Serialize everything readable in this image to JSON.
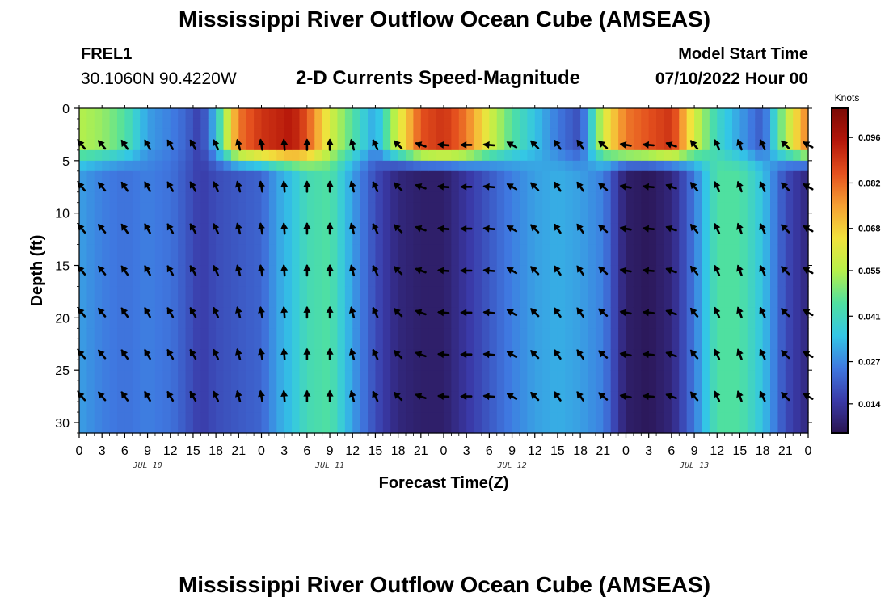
{
  "header": {
    "title": "Mississippi River Outflow Ocean Cube (AMSEAS)",
    "station_id": "FREL1",
    "station_coords": "30.1060N  90.4220W",
    "product": "2-D Currents Speed-Magnitude",
    "model_start_label": "Model Start Time",
    "model_start_value": "07/10/2022 Hour 00"
  },
  "footer": {
    "title": "Mississippi River Outflow Ocean Cube (AMSEAS)"
  },
  "colors": {
    "colormap": [
      "#2a1450",
      "#3a3aa8",
      "#3f78e0",
      "#33c6e6",
      "#4fe0a0",
      "#b6f04a",
      "#f2e23c",
      "#f6a033",
      "#e4501e",
      "#b4160a",
      "#7a0a05"
    ],
    "arrow": "#000000"
  },
  "chart_data": {
    "type": "heatmap",
    "title": "2-D Currents Speed-Magnitude",
    "xlabel": "Forecast Time(Z)",
    "ylabel": "Depth (ft)",
    "x_tick_labels": [
      "0",
      "3",
      "6",
      "9",
      "12",
      "15",
      "18",
      "21",
      "0",
      "3",
      "6",
      "9",
      "12",
      "15",
      "18",
      "21",
      "0",
      "3",
      "6",
      "9",
      "12",
      "15",
      "18",
      "21",
      "0",
      "3",
      "6",
      "9",
      "12",
      "15",
      "18",
      "21",
      "0"
    ],
    "x_range_hours": [
      0,
      96
    ],
    "date_labels": [
      {
        "label": "JUL 10",
        "hour": 9
      },
      {
        "label": "JUL 11",
        "hour": 33
      },
      {
        "label": "JUL 12",
        "hour": 57
      },
      {
        "label": "JUL 13",
        "hour": 81
      }
    ],
    "y_range_ft": [
      0,
      31
    ],
    "y_ticks": [
      0,
      5,
      10,
      15,
      20,
      25,
      30
    ],
    "colorbar": {
      "label": "Knots",
      "tick_labels": [
        "0.096",
        "0.082",
        "0.068",
        "0.055",
        "0.041",
        "0.027",
        "0.014"
      ],
      "tick_values": [
        0.096,
        0.082,
        0.068,
        0.055,
        0.041,
        0.027,
        0.014
      ],
      "range": [
        0.005,
        0.105
      ]
    },
    "speed_profile_by_hour": {
      "hours": [
        0,
        3,
        6,
        9,
        12,
        14,
        16,
        18,
        21,
        24,
        26,
        28,
        30,
        33,
        36,
        39,
        42,
        45,
        48,
        51,
        54,
        57,
        60,
        63,
        66,
        69,
        72,
        75,
        78,
        81,
        84,
        87,
        90,
        93,
        96
      ],
      "surface": [
        0.055,
        0.052,
        0.045,
        0.03,
        0.026,
        0.022,
        0.015,
        0.035,
        0.08,
        0.09,
        0.092,
        0.095,
        0.085,
        0.06,
        0.045,
        0.03,
        0.06,
        0.085,
        0.09,
        0.08,
        0.06,
        0.045,
        0.035,
        0.025,
        0.018,
        0.06,
        0.08,
        0.085,
        0.09,
        0.06,
        0.04,
        0.03,
        0.02,
        0.055,
        0.08
      ],
      "deep": [
        0.03,
        0.026,
        0.024,
        0.026,
        0.024,
        0.02,
        0.015,
        0.018,
        0.02,
        0.022,
        0.03,
        0.035,
        0.042,
        0.045,
        0.03,
        0.018,
        0.01,
        0.008,
        0.008,
        0.014,
        0.02,
        0.026,
        0.03,
        0.032,
        0.03,
        0.026,
        0.008,
        0.006,
        0.01,
        0.025,
        0.045,
        0.045,
        0.035,
        0.018,
        0.01
      ]
    },
    "vector_depths_ft": [
      3.5,
      7.5,
      11.5,
      15.5,
      19.5,
      23.5,
      27.5
    ],
    "vector_hours": [
      0,
      3,
      6,
      9,
      12,
      15,
      18,
      21,
      24,
      27,
      30,
      33,
      36,
      39,
      42,
      45,
      48,
      51,
      54,
      57,
      60,
      63,
      66,
      69,
      72,
      75,
      78,
      81,
      84,
      87,
      90,
      93,
      96
    ],
    "vector_direction_deg": [
      40,
      40,
      35,
      30,
      30,
      30,
      25,
      15,
      10,
      5,
      0,
      0,
      15,
      25,
      45,
      70,
      85,
      90,
      85,
      60,
      45,
      35,
      35,
      50,
      80,
      85,
      70,
      40,
      25,
      20,
      25,
      45,
      60
    ]
  }
}
